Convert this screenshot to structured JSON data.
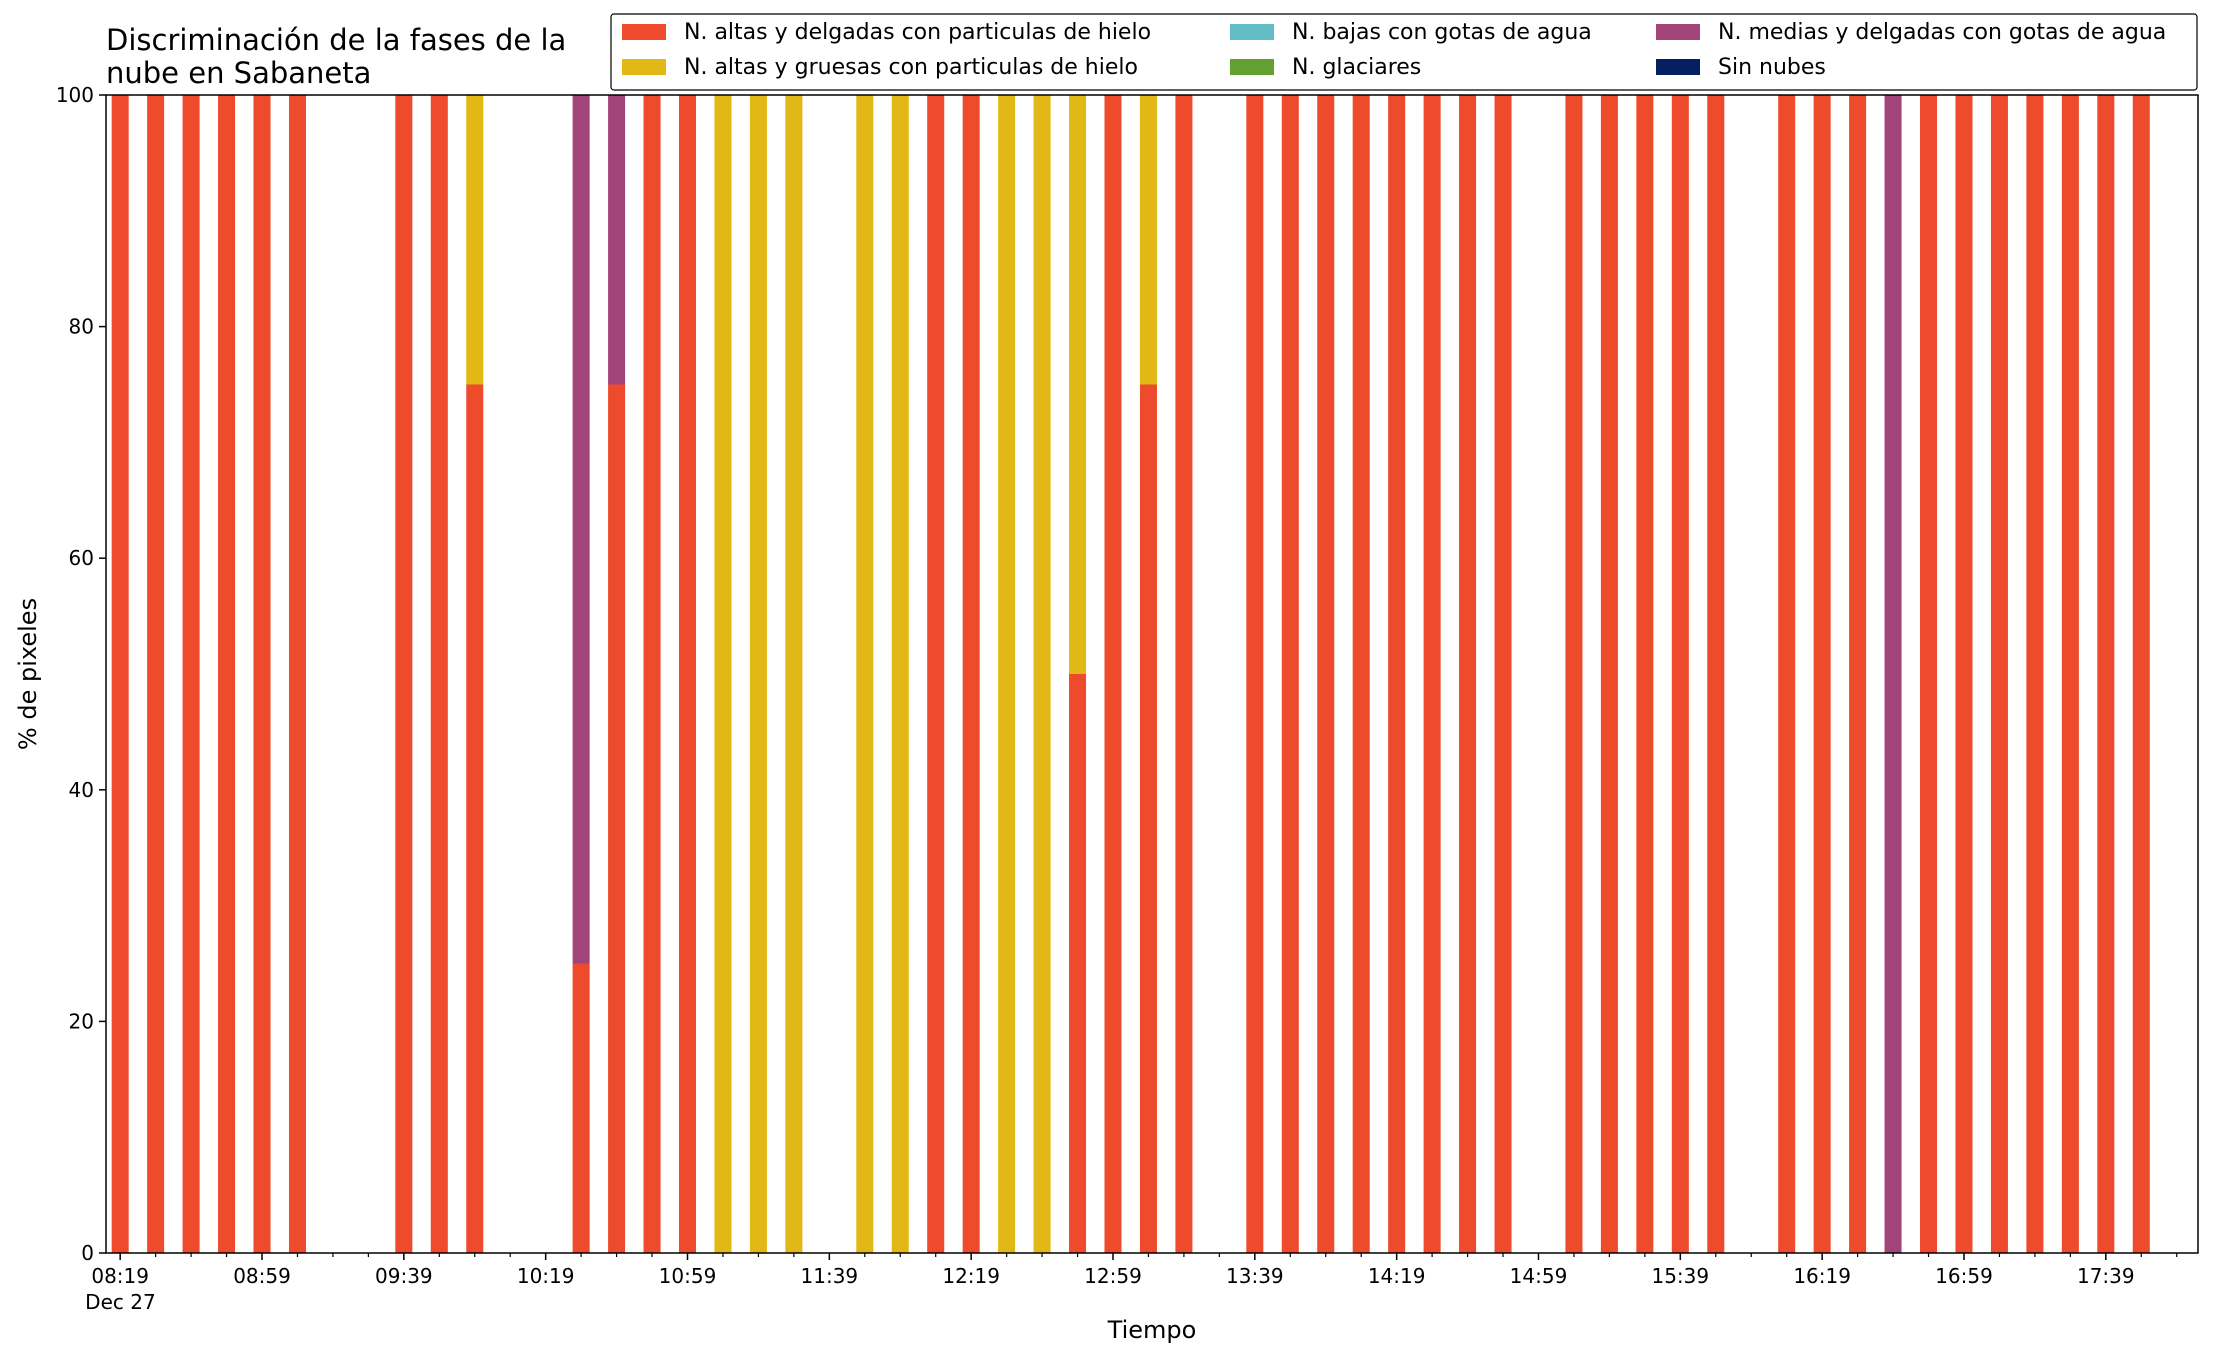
{
  "chart_data": {
    "type": "bar",
    "stacked": true,
    "title_lines": [
      "Discriminación de la fases de la",
      "nube en Sabaneta"
    ],
    "xlabel": "Tiempo",
    "ylabel": "% de pixeles",
    "ylim": [
      0,
      100
    ],
    "yticks": [
      "0",
      "20",
      "40",
      "60",
      "80",
      "100"
    ],
    "x_start_minutes": 499,
    "bar_interval_minutes": 10,
    "xlim_minutes": [
      495,
      1085
    ],
    "date_label": "Dec 27",
    "xtick_labels": [
      "08:19",
      "08:59",
      "09:39",
      "10:19",
      "10:59",
      "11:39",
      "12:19",
      "12:59",
      "13:39",
      "14:19",
      "14:59",
      "15:39",
      "16:19",
      "16:59",
      "17:39"
    ],
    "legend_placement": "top-right",
    "grid": false,
    "series": [
      {
        "name": "N. altas y delgadas con particulas de hielo",
        "color": "#ee4a2c",
        "values": [
          100,
          100,
          100,
          100,
          100,
          100,
          0,
          0,
          100,
          100,
          75,
          0,
          0,
          25,
          75,
          100,
          100,
          0,
          0,
          0,
          0,
          0,
          0,
          100,
          100,
          0,
          0,
          50,
          100,
          75,
          100,
          0,
          100,
          100,
          100,
          100,
          100,
          100,
          100,
          100,
          0,
          100,
          100,
          100,
          100,
          100,
          0,
          100,
          100,
          100,
          0,
          100,
          100,
          100,
          100,
          100,
          100,
          100
        ]
      },
      {
        "name": "N. altas y gruesas con particulas de hielo",
        "color": "#e2b816",
        "values": [
          0,
          0,
          0,
          0,
          0,
          0,
          0,
          0,
          0,
          0,
          25,
          0,
          0,
          0,
          0,
          0,
          0,
          100,
          100,
          100,
          0,
          100,
          100,
          0,
          0,
          100,
          100,
          50,
          0,
          25,
          0,
          0,
          0,
          0,
          0,
          0,
          0,
          0,
          0,
          0,
          0,
          0,
          0,
          0,
          0,
          0,
          0,
          0,
          0,
          0,
          0,
          0,
          0,
          0,
          0,
          0,
          0,
          0
        ]
      },
      {
        "name": "N. bajas con gotas de agua",
        "color": "#62bcc6",
        "values": [
          0,
          0,
          0,
          0,
          0,
          0,
          0,
          0,
          0,
          0,
          0,
          0,
          0,
          0,
          0,
          0,
          0,
          0,
          0,
          0,
          0,
          0,
          0,
          0,
          0,
          0,
          0,
          0,
          0,
          0,
          0,
          0,
          0,
          0,
          0,
          0,
          0,
          0,
          0,
          0,
          0,
          0,
          0,
          0,
          0,
          0,
          0,
          0,
          0,
          0,
          0,
          0,
          0,
          0,
          0,
          0,
          0,
          0
        ]
      },
      {
        "name": "N. glaciares",
        "color": "#62a030",
        "values": [
          0,
          0,
          0,
          0,
          0,
          0,
          0,
          0,
          0,
          0,
          0,
          0,
          0,
          0,
          0,
          0,
          0,
          0,
          0,
          0,
          0,
          0,
          0,
          0,
          0,
          0,
          0,
          0,
          0,
          0,
          0,
          0,
          0,
          0,
          0,
          0,
          0,
          0,
          0,
          0,
          0,
          0,
          0,
          0,
          0,
          0,
          0,
          0,
          0,
          0,
          0,
          0,
          0,
          0,
          0,
          0,
          0,
          0
        ]
      },
      {
        "name": "N. medias y delgadas con gotas de agua",
        "color": "#a2447a",
        "values": [
          0,
          0,
          0,
          0,
          0,
          0,
          0,
          0,
          0,
          0,
          0,
          0,
          0,
          75,
          25,
          0,
          0,
          0,
          0,
          0,
          0,
          0,
          0,
          0,
          0,
          0,
          0,
          0,
          0,
          0,
          0,
          0,
          0,
          0,
          0,
          0,
          0,
          0,
          0,
          0,
          0,
          0,
          0,
          0,
          0,
          0,
          0,
          0,
          0,
          0,
          100,
          0,
          0,
          0,
          0,
          0,
          0,
          0
        ]
      },
      {
        "name": "Sin nubes",
        "color": "#04205e",
        "values": [
          0,
          0,
          0,
          0,
          0,
          0,
          0,
          0,
          0,
          0,
          0,
          0,
          0,
          0,
          0,
          0,
          0,
          0,
          0,
          0,
          0,
          0,
          0,
          0,
          0,
          0,
          0,
          0,
          0,
          0,
          0,
          0,
          0,
          0,
          0,
          0,
          0,
          0,
          0,
          0,
          0,
          0,
          0,
          0,
          0,
          0,
          0,
          0,
          0,
          0,
          0,
          0,
          0,
          0,
          0,
          0,
          0,
          0
        ]
      }
    ],
    "legend_order": [
      0,
      1,
      2,
      3,
      4,
      5
    ]
  }
}
